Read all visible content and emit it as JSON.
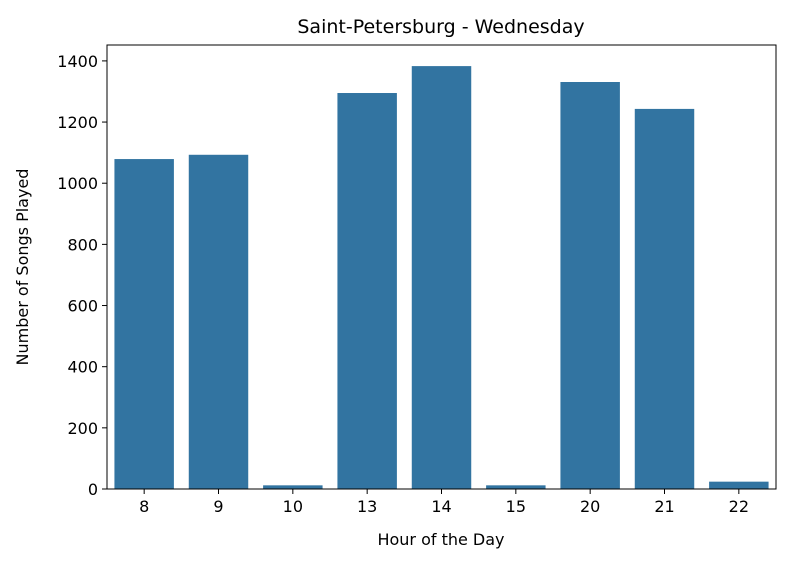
{
  "chart_data": {
    "type": "bar",
    "title": "Saint-Petersburg - Wednesday",
    "xlabel": "Hour of the Day",
    "ylabel": "Number of Songs Played",
    "categories": [
      "8",
      "9",
      "10",
      "13",
      "14",
      "15",
      "20",
      "21",
      "22"
    ],
    "values": [
      1079,
      1093,
      12,
      1295,
      1383,
      12,
      1331,
      1243,
      24
    ],
    "ylim": [
      0,
      1452
    ],
    "yticks": [
      0,
      200,
      400,
      600,
      800,
      1000,
      1200,
      1400
    ],
    "grid": false,
    "bar_color": "#3274a1"
  }
}
